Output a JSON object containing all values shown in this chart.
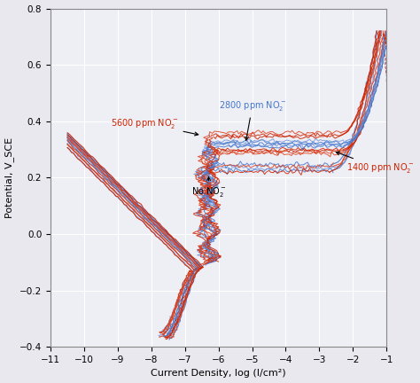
{
  "xlabel": "Current Density, log (I/cm²)",
  "ylabel": "Potential, V_SCE",
  "xlim": [
    -11,
    -1
  ],
  "ylim": [
    -0.4,
    0.8
  ],
  "xticks": [
    -11,
    -10,
    -9,
    -8,
    -7,
    -6,
    -5,
    -4,
    -3,
    -2,
    -1
  ],
  "yticks": [
    -0.4,
    -0.2,
    0,
    0.2,
    0.4,
    0.6,
    0.8
  ],
  "background_color": "#eeeef5",
  "grid_color": "#ffffff",
  "blue_color": "#4477cc",
  "blue_light": "#7799dd",
  "red_color": "#cc2200",
  "red_light": "#dd4422"
}
